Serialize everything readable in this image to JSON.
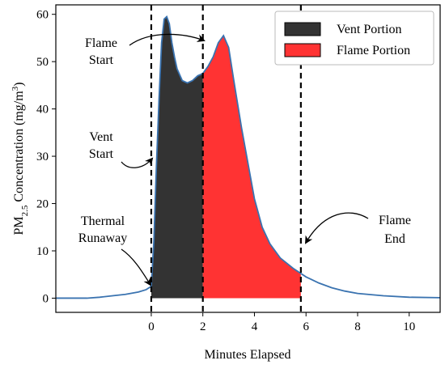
{
  "chart_data": {
    "type": "area",
    "xlabel": "Minutes Elapsed",
    "ylabel_main": "PM",
    "ylabel_sub": "2.5",
    "ylabel_rest": " Concentration (mg/m",
    "ylabel_sup": "3",
    "ylabel_end": ")",
    "xlim": [
      -3.7,
      11.2
    ],
    "ylim": [
      -3,
      62
    ],
    "xticks": [
      0,
      2,
      4,
      6,
      8,
      10
    ],
    "yticks": [
      0,
      10,
      20,
      30,
      40,
      50,
      60
    ],
    "vlines": [
      0,
      2,
      5.8
    ],
    "series": [
      {
        "name": "Vent Portion",
        "color": "#333333",
        "x_range": [
          0,
          2
        ]
      },
      {
        "name": "Flame Portion",
        "color": "#ff3333",
        "x_range": [
          2,
          5.8
        ]
      }
    ],
    "curve": {
      "color": "#3a73b0",
      "x": [
        -3.7,
        -2.5,
        -2.0,
        -1.5,
        -1.0,
        -0.5,
        -0.2,
        0.0,
        0.1,
        0.2,
        0.3,
        0.4,
        0.5,
        0.6,
        0.7,
        0.8,
        0.9,
        1.0,
        1.2,
        1.4,
        1.6,
        1.8,
        2.0,
        2.2,
        2.4,
        2.6,
        2.8,
        3.0,
        3.2,
        3.5,
        3.8,
        4.0,
        4.3,
        4.6,
        5.0,
        5.5,
        6.0,
        6.5,
        7.0,
        7.5,
        8.0,
        9.0,
        10.0,
        11.2
      ],
      "y": [
        0,
        0,
        0.2,
        0.5,
        0.8,
        1.3,
        1.8,
        2.5,
        12,
        28,
        42,
        54,
        59,
        59.5,
        58,
        54,
        51,
        48.5,
        46,
        45.5,
        46,
        47,
        47.5,
        49,
        51,
        54,
        55.5,
        53,
        46,
        36,
        27,
        21,
        15,
        11.5,
        8.5,
        6.3,
        4.5,
        3.2,
        2.2,
        1.5,
        1.0,
        0.5,
        0.2,
        0.1
      ]
    },
    "annotations": [
      {
        "lines": [
          "Flame",
          "Start"
        ]
      },
      {
        "lines": [
          "Vent",
          "Start"
        ]
      },
      {
        "lines": [
          "Thermal",
          "Runaway"
        ]
      },
      {
        "lines": [
          "Flame",
          "End"
        ]
      }
    ],
    "legend": {
      "position": "top-right"
    },
    "grid": false
  }
}
